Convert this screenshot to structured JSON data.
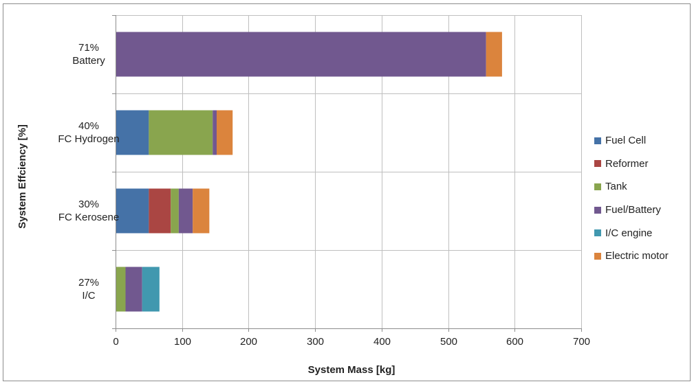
{
  "chart_data": {
    "type": "bar",
    "orientation": "horizontal",
    "stacked": true,
    "title": "",
    "xlabel": "System Mass [kg]",
    "ylabel": "System Effciency [%]",
    "xlim": [
      0,
      700
    ],
    "xticks": [
      "0",
      "100",
      "200",
      "300",
      "400",
      "500",
      "600",
      "700"
    ],
    "grid": true,
    "legend_position": "right",
    "categories": [
      {
        "efficiency": "71%",
        "name": "Battery"
      },
      {
        "efficiency": "40%",
        "name": "FC Hydrogen"
      },
      {
        "efficiency": "30%",
        "name": "FC Kerosene"
      },
      {
        "efficiency": "27%",
        "name": "I/C"
      }
    ],
    "series": [
      {
        "name": "Fuel Cell",
        "color": "#4572A7",
        "values": [
          0,
          50,
          50,
          0
        ]
      },
      {
        "name": "Reformer",
        "color": "#AA4643",
        "values": [
          0,
          0,
          33,
          0
        ]
      },
      {
        "name": "Tank",
        "color": "#89A54E",
        "values": [
          0,
          96,
          12,
          15
        ]
      },
      {
        "name": "Fuel/Battery",
        "color": "#71588F",
        "values": [
          557,
          6,
          21,
          25
        ]
      },
      {
        "name": "I/C engine",
        "color": "#4198AF",
        "values": [
          0,
          0,
          0,
          26
        ]
      },
      {
        "name": "Electric motor",
        "color": "#DB843D",
        "values": [
          24,
          24,
          25,
          0
        ]
      }
    ]
  }
}
